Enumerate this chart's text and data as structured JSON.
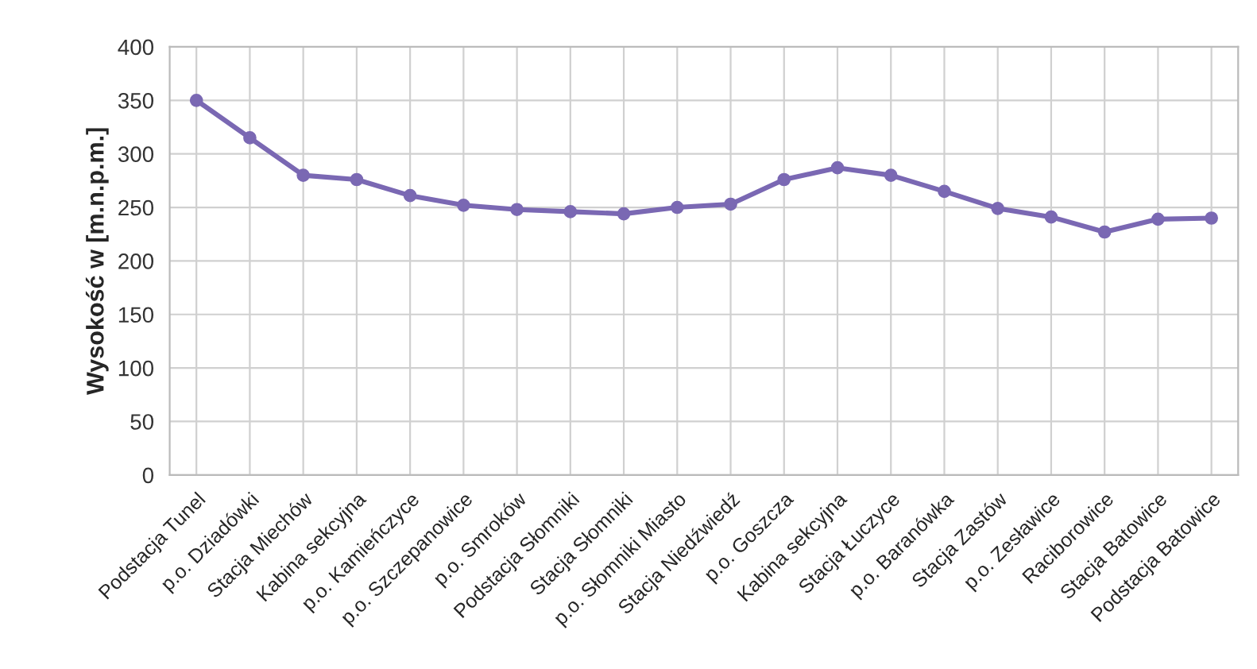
{
  "chart_data": {
    "type": "line",
    "ylabel": "Wysokość w [m.n.p.m.]",
    "categories": [
      "Podstacja Tunel",
      "p.o. Dziadówki",
      "Stacja Miechów",
      "Kabina sekcyjna",
      "p.o. Kamieńczyce",
      "p.o. Szczepanowice",
      "p.o. Smroków",
      "Podstacja Słomniki",
      "Stacja Słomniki",
      "p.o. Słomniki Miasto",
      "Stacja Niedźwiedź",
      "p.o. Goszcza",
      "Kabina sekcyjna",
      "Stacja Łuczyce",
      "p.o. Baranówka",
      "Stacja Zastów",
      "p.o. Zesławice",
      "Raciborowice",
      "Stacja Batowice",
      "Podstacja Batowice"
    ],
    "series": [
      {
        "color": "#7a68b3",
        "values": [
          350,
          315,
          280,
          276,
          261,
          252,
          248,
          246,
          244,
          250,
          253,
          276,
          287,
          280,
          265,
          249,
          241,
          227,
          239,
          240
        ]
      }
    ],
    "ylim": [
      0,
      400
    ],
    "yticks": [
      0,
      50,
      100,
      150,
      200,
      250,
      300,
      350,
      400
    ],
    "grid": true,
    "marker": "circle",
    "line_style": "solid",
    "legend": false
  }
}
